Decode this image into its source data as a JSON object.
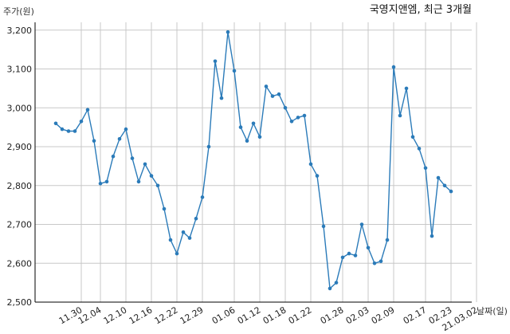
{
  "chart_data": {
    "type": "line",
    "title": "국영지앤엠, 최근 3개월",
    "ylabel": "주가(원)",
    "xlabel": "날짜(일)",
    "ylim": [
      2500,
      3220
    ],
    "yticks": [
      2500,
      2600,
      2700,
      2800,
      2900,
      3000,
      3100,
      3200
    ],
    "ytick_labels": [
      "2,500",
      "2,600",
      "2,700",
      "2,800",
      "2,900",
      "3,000",
      "3,100",
      "3,200"
    ],
    "xtick_labels": [
      "11.30",
      "12.04",
      "12.10",
      "12.16",
      "12.22",
      "12.29",
      "01.06",
      "01.12",
      "01.18",
      "01.22",
      "01.28",
      "02.03",
      "02.09",
      "02.17",
      "02.23",
      "21.03.02"
    ],
    "xtick_index": [
      4,
      7,
      11,
      15,
      19,
      23,
      28,
      32,
      36,
      40,
      45,
      49,
      53,
      58,
      62,
      66
    ],
    "grid": true,
    "series": [
      {
        "color": "#2b7bb9",
        "values": [
          2960,
          2945,
          2940,
          2940,
          2965,
          2995,
          2915,
          2805,
          2810,
          2875,
          2920,
          2945,
          2870,
          2810,
          2855,
          2825,
          2800,
          2740,
          2660,
          2625,
          2680,
          2665,
          2715,
          2770,
          2900,
          3120,
          3025,
          3195,
          3095,
          2950,
          2915,
          2960,
          2925,
          3055,
          3030,
          3035,
          3000,
          2965,
          2975,
          2980,
          2855,
          2825,
          2695,
          2535,
          2550,
          2615,
          2625,
          2620,
          2700,
          2640,
          2600,
          2605,
          2660,
          3105,
          2980,
          3050,
          2925,
          2895,
          2845,
          2670,
          2820,
          2800,
          2785
        ]
      }
    ]
  }
}
